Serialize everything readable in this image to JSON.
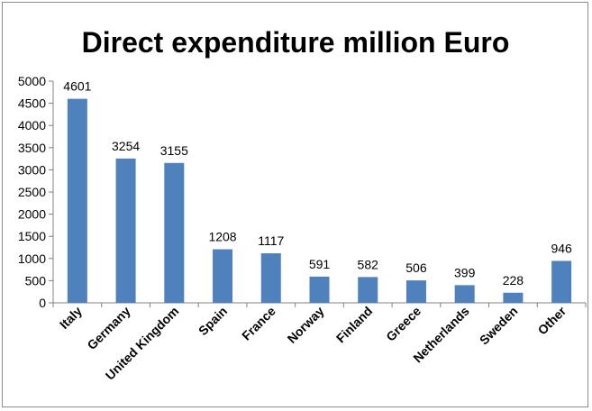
{
  "chart_data": {
    "type": "bar",
    "title": "Direct expenditure  million Euro",
    "categories": [
      "Italy",
      "Germany",
      "United Kingdom",
      "Spain",
      "France",
      "Norway",
      "Finland",
      "Greece",
      "Netherlands",
      "Sweden",
      "Other"
    ],
    "values": [
      4601,
      3254,
      3155,
      1208,
      1117,
      591,
      582,
      506,
      399,
      228,
      946
    ],
    "value_labels": [
      "4601",
      "3254",
      "3155",
      "1208",
      "1117",
      "591",
      "582",
      "506",
      "399",
      "228",
      "946"
    ],
    "yticks": [
      "0",
      "500",
      "1000",
      "1500",
      "2000",
      "2500",
      "3000",
      "3500",
      "4000",
      "4500",
      "5000"
    ],
    "ylim": [
      0,
      5000
    ],
    "grid": false,
    "legend": "none",
    "bar_color": "#4F81BD"
  }
}
